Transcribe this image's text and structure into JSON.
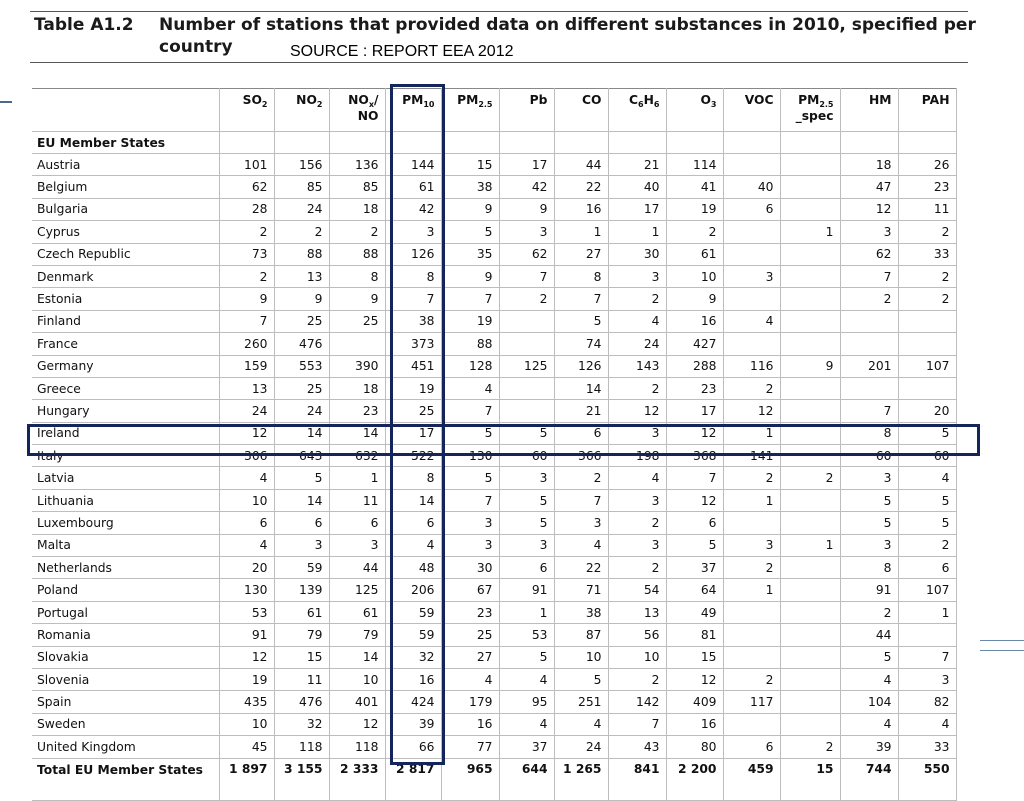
{
  "title": {
    "label": "Table A1.2",
    "text": "Number of stations that provided data on different substances in 2010, specified per country",
    "source_note": "SOURCE : REPORT EEA 2012"
  },
  "table": {
    "columns": [
      {
        "label": ""
      },
      {
        "main": "SO",
        "sub": "2",
        "tail": ""
      },
      {
        "main": "NO",
        "sub": "2",
        "tail": ""
      },
      {
        "main": "NO",
        "sub": "x",
        "tail": "/ NO"
      },
      {
        "main": "PM",
        "sub": "10",
        "tail": ""
      },
      {
        "main": "PM",
        "sub": "2.5",
        "tail": ""
      },
      {
        "main": "Pb",
        "sub": "",
        "tail": ""
      },
      {
        "main": "CO",
        "sub": "",
        "tail": ""
      },
      {
        "main": "C",
        "sub": "6",
        "tail": "H",
        "sub2": "6"
      },
      {
        "main": "O",
        "sub": "3",
        "tail": ""
      },
      {
        "main": "VOC",
        "sub": "",
        "tail": ""
      },
      {
        "main": "PM",
        "sub": "2.5",
        "tail": "_spec"
      },
      {
        "main": "HM",
        "sub": "",
        "tail": ""
      },
      {
        "main": "PAH",
        "sub": "",
        "tail": ""
      }
    ],
    "section_label": "EU Member States",
    "rows": [
      [
        "Austria",
        "101",
        "156",
        "136",
        "144",
        "15",
        "17",
        "44",
        "21",
        "114",
        "",
        "",
        "18",
        "26"
      ],
      [
        "Belgium",
        "62",
        "85",
        "85",
        "61",
        "38",
        "42",
        "22",
        "40",
        "41",
        "40",
        "",
        "47",
        "23"
      ],
      [
        "Bulgaria",
        "28",
        "24",
        "18",
        "42",
        "9",
        "9",
        "16",
        "17",
        "19",
        "6",
        "",
        "12",
        "11"
      ],
      [
        "Cyprus",
        "2",
        "2",
        "2",
        "3",
        "5",
        "3",
        "1",
        "1",
        "2",
        "",
        "1",
        "3",
        "2"
      ],
      [
        "Czech Republic",
        "73",
        "88",
        "88",
        "126",
        "35",
        "62",
        "27",
        "30",
        "61",
        "",
        "",
        "62",
        "33"
      ],
      [
        "Denmark",
        "2",
        "13",
        "8",
        "8",
        "9",
        "7",
        "8",
        "3",
        "10",
        "3",
        "",
        "7",
        "2"
      ],
      [
        "Estonia",
        "9",
        "9",
        "9",
        "7",
        "7",
        "2",
        "7",
        "2",
        "9",
        "",
        "",
        "2",
        "2"
      ],
      [
        "Finland",
        "7",
        "25",
        "25",
        "38",
        "19",
        "",
        "5",
        "4",
        "16",
        "4",
        "",
        "",
        ""
      ],
      [
        "France",
        "260",
        "476",
        "",
        "373",
        "88",
        "",
        "74",
        "24",
        "427",
        "",
        "",
        "",
        ""
      ],
      [
        "Germany",
        "159",
        "553",
        "390",
        "451",
        "128",
        "125",
        "126",
        "143",
        "288",
        "116",
        "9",
        "201",
        "107"
      ],
      [
        "Greece",
        "13",
        "25",
        "18",
        "19",
        "4",
        "",
        "14",
        "2",
        "23",
        "2",
        "",
        "",
        ""
      ],
      [
        "Hungary",
        "24",
        "24",
        "23",
        "25",
        "7",
        "",
        "21",
        "12",
        "17",
        "12",
        "",
        "7",
        "20"
      ],
      [
        "Ireland",
        "12",
        "14",
        "14",
        "17",
        "5",
        "5",
        "6",
        "3",
        "12",
        "1",
        "",
        "8",
        "5"
      ],
      [
        "Italy",
        "306",
        "643",
        "632",
        "522",
        "130",
        "60",
        "366",
        "198",
        "368",
        "141",
        "",
        "60",
        "60"
      ],
      [
        "Latvia",
        "4",
        "5",
        "1",
        "8",
        "5",
        "3",
        "2",
        "4",
        "7",
        "2",
        "2",
        "3",
        "4"
      ],
      [
        "Lithuania",
        "10",
        "14",
        "11",
        "14",
        "7",
        "5",
        "7",
        "3",
        "12",
        "1",
        "",
        "5",
        "5"
      ],
      [
        "Luxembourg",
        "6",
        "6",
        "6",
        "6",
        "3",
        "5",
        "3",
        "2",
        "6",
        "",
        "",
        "5",
        "5"
      ],
      [
        "Malta",
        "4",
        "3",
        "3",
        "4",
        "3",
        "3",
        "4",
        "3",
        "5",
        "3",
        "1",
        "3",
        "2"
      ],
      [
        "Netherlands",
        "20",
        "59",
        "44",
        "48",
        "30",
        "6",
        "22",
        "2",
        "37",
        "2",
        "",
        "8",
        "6"
      ],
      [
        "Poland",
        "130",
        "139",
        "125",
        "206",
        "67",
        "91",
        "71",
        "54",
        "64",
        "1",
        "",
        "91",
        "107"
      ],
      [
        "Portugal",
        "53",
        "61",
        "61",
        "59",
        "23",
        "1",
        "38",
        "13",
        "49",
        "",
        "",
        "2",
        "1"
      ],
      [
        "Romania",
        "91",
        "79",
        "79",
        "59",
        "25",
        "53",
        "87",
        "56",
        "81",
        "",
        "",
        "44",
        ""
      ],
      [
        "Slovakia",
        "12",
        "15",
        "14",
        "32",
        "27",
        "5",
        "10",
        "10",
        "15",
        "",
        "",
        "5",
        "7"
      ],
      [
        "Slovenia",
        "19",
        "11",
        "10",
        "16",
        "4",
        "4",
        "5",
        "2",
        "12",
        "2",
        "",
        "4",
        "3"
      ],
      [
        "Spain",
        "435",
        "476",
        "401",
        "424",
        "179",
        "95",
        "251",
        "142",
        "409",
        "117",
        "",
        "104",
        "82"
      ],
      [
        "Sweden",
        "10",
        "32",
        "12",
        "39",
        "16",
        "4",
        "4",
        "7",
        "16",
        "",
        "",
        "4",
        "4"
      ],
      [
        "United Kingdom",
        "45",
        "118",
        "118",
        "66",
        "77",
        "37",
        "24",
        "43",
        "80",
        "6",
        "2",
        "39",
        "33"
      ]
    ],
    "total_row": [
      "Total EU Member States",
      "1 897",
      "3 155",
      "2 333",
      "2 817",
      "965",
      "644",
      "1 265",
      "841",
      "2 200",
      "459",
      "15",
      "744",
      "550"
    ]
  },
  "highlights": {
    "column": "PM10",
    "row": "Italy",
    "color": "#13255a"
  }
}
